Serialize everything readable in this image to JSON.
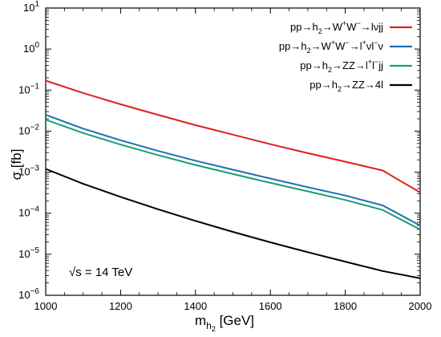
{
  "chart_data": {
    "type": "line",
    "title": "",
    "xlabel": {
      "base": "m",
      "sub": "h",
      "subsub": "2",
      "rest": " [GeV]"
    },
    "ylabel": "σ [fb]",
    "x_scale": "linear",
    "y_scale": "log",
    "xlim": [
      1000,
      2000
    ],
    "ylim_exponent": [
      -6,
      1
    ],
    "x_ticks": [
      1000,
      1200,
      1400,
      1600,
      1800,
      2000
    ],
    "y_tick_exponents": [
      -6,
      -5,
      -4,
      -3,
      -2,
      -1,
      0,
      1
    ],
    "grid": false,
    "legend_position": "top-right",
    "annotation": "√s = 14 TeV",
    "series": [
      {
        "name": "pp→h2→W+W−→lνjj",
        "legend_parts": [
          [
            "pp→h",
            "n"
          ],
          [
            "2",
            "sub"
          ],
          [
            "→W",
            "n"
          ],
          [
            "+",
            "sup"
          ],
          [
            "W",
            "n"
          ],
          [
            "−",
            "sup"
          ],
          [
            "→lνjj",
            "n"
          ]
        ],
        "color": "#e0201b",
        "x": [
          1000,
          1100,
          1200,
          1300,
          1400,
          1500,
          1600,
          1700,
          1800,
          1900,
          2000
        ],
        "y": [
          0.17,
          0.085,
          0.045,
          0.025,
          0.014,
          0.0082,
          0.0048,
          0.0029,
          0.0018,
          0.0011,
          0.00032
        ]
      },
      {
        "name": "pp→h2→W+W−→l+νl−ν",
        "legend_parts": [
          [
            "pp→h",
            "n"
          ],
          [
            "2",
            "sub"
          ],
          [
            "→W",
            "n"
          ],
          [
            "+",
            "sup"
          ],
          [
            "W",
            "n"
          ],
          [
            "−",
            "sup"
          ],
          [
            "→l",
            "n"
          ],
          [
            "+",
            "sup"
          ],
          [
            "νl",
            "n"
          ],
          [
            "−",
            "sup"
          ],
          [
            "ν",
            "n"
          ]
        ],
        "color": "#1f6fb0",
        "x": [
          1000,
          1100,
          1200,
          1300,
          1400,
          1500,
          1600,
          1700,
          1800,
          1900,
          2000
        ],
        "y": [
          0.025,
          0.0115,
          0.006,
          0.0033,
          0.0019,
          0.00115,
          0.0007,
          0.00043,
          0.00027,
          0.000155,
          5e-05
        ]
      },
      {
        "name": "pp→h2→ZZ→l+l−jj",
        "legend_parts": [
          [
            "pp→h",
            "n"
          ],
          [
            "2",
            "sub"
          ],
          [
            "→ZZ→l",
            "n"
          ],
          [
            "+",
            "sup"
          ],
          [
            "l",
            "n"
          ],
          [
            "−",
            "sup"
          ],
          [
            "jj",
            "n"
          ]
        ],
        "color": "#17a06b",
        "x": [
          1000,
          1100,
          1200,
          1300,
          1400,
          1500,
          1600,
          1700,
          1800,
          1900,
          2000
        ],
        "y": [
          0.019,
          0.009,
          0.0047,
          0.0026,
          0.0015,
          0.0009,
          0.00055,
          0.00034,
          0.00021,
          0.00012,
          4e-05
        ]
      },
      {
        "name": "pp→h2→ZZ→4l",
        "legend_parts": [
          [
            "pp→h",
            "n"
          ],
          [
            "2",
            "sub"
          ],
          [
            "→ZZ→4l",
            "n"
          ]
        ],
        "color": "#000000",
        "x": [
          1000,
          1100,
          1200,
          1300,
          1400,
          1500,
          1600,
          1700,
          1800,
          1900,
          2000
        ],
        "y": [
          0.0012,
          0.00052,
          0.00025,
          0.000125,
          6.5e-05,
          3.5e-05,
          1.95e-05,
          1.12e-05,
          6.6e-06,
          3.9e-06,
          2.6e-06
        ]
      }
    ]
  }
}
